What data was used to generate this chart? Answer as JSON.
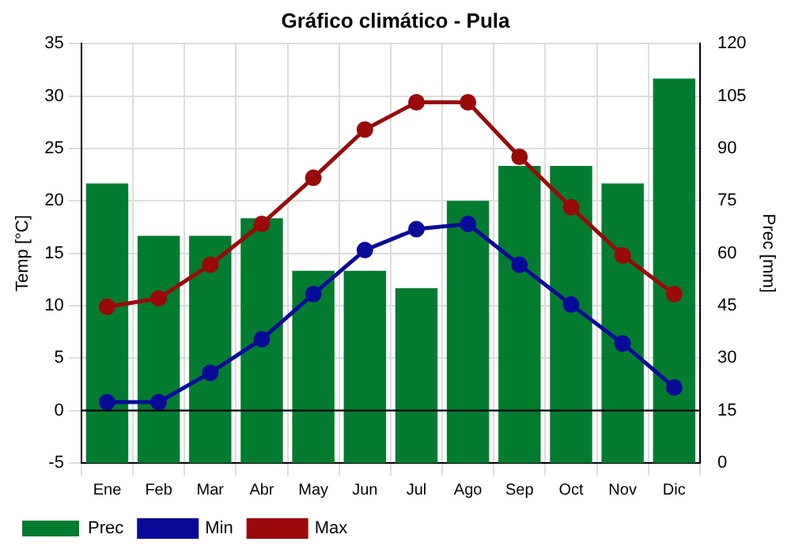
{
  "chart_data": {
    "type": "line",
    "title": "Gráfico climático - Pula",
    "ylabel": "Temp [°C]",
    "y2label": "Prec [mm]",
    "categories": [
      "Ene",
      "Feb",
      "Mar",
      "Abr",
      "May",
      "Jun",
      "Jul",
      "Ago",
      "Sep",
      "Oct",
      "Nov",
      "Dic"
    ],
    "series": [
      {
        "name": "Prec",
        "type": "bar",
        "axis": "y2",
        "color": "#037c30",
        "values": [
          80,
          65,
          65,
          70,
          55,
          55,
          50,
          75,
          85,
          85,
          80,
          110
        ]
      },
      {
        "name": "Min",
        "color": "#0a0a99",
        "values": [
          0.8,
          0.8,
          3.6,
          6.8,
          11.1,
          15.3,
          17.3,
          17.8,
          13.9,
          10.1,
          6.4,
          2.2
        ]
      },
      {
        "name": "Max",
        "color": "#9a0a0a",
        "values": [
          9.9,
          10.7,
          13.9,
          17.8,
          22.2,
          26.8,
          29.4,
          29.4,
          24.2,
          19.4,
          14.8,
          11.1
        ]
      }
    ],
    "ylim": [
      -5,
      35
    ],
    "yticks": [
      -5,
      0,
      5,
      10,
      15,
      20,
      25,
      30,
      35
    ],
    "y2lim": [
      0,
      120
    ],
    "y2ticks": [
      0,
      15,
      30,
      45,
      60,
      75,
      90,
      105,
      120
    ],
    "ref_lines": [
      {
        "axis": "y",
        "value": 0,
        "color": "#000000"
      }
    ],
    "grid": true,
    "legend": "bottom",
    "marker": "circle",
    "line_style": "solid"
  }
}
